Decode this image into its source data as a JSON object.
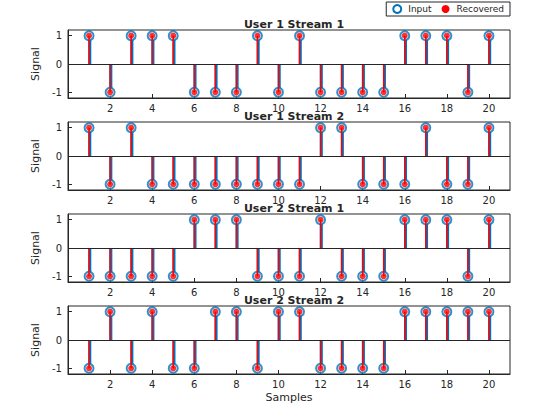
{
  "chart_data": [
    {
      "type": "stem",
      "title": "User 1 Stream 1",
      "ylabel": "Signal",
      "x": [
        1,
        2,
        3,
        4,
        5,
        6,
        7,
        8,
        9,
        10,
        11,
        12,
        13,
        14,
        15,
        16,
        17,
        18,
        19,
        20
      ],
      "series": [
        {
          "name": "Input",
          "color": "#0072bd",
          "marker": "open circle",
          "line_style": "solid",
          "values": [
            1,
            -1,
            1,
            1,
            1,
            -1,
            -1,
            -1,
            1,
            -1,
            1,
            -1,
            -1,
            -1,
            -1,
            1,
            1,
            1,
            -1,
            1
          ]
        },
        {
          "name": "Recovered",
          "color": "#ff0000",
          "marker": "filled circle",
          "line_style": "solid",
          "values": [
            1,
            -1,
            1,
            1,
            1,
            -1,
            -1,
            -1,
            1,
            -1,
            1,
            -1,
            -1,
            -1,
            -1,
            1,
            1,
            1,
            -1,
            1
          ]
        }
      ],
      "xlim": [
        0,
        21
      ],
      "xticks": [
        2,
        4,
        6,
        8,
        10,
        12,
        14,
        16,
        18,
        20
      ],
      "ylim": [
        -1.2,
        1.2
      ],
      "yticks": [
        -1,
        0,
        1
      ],
      "grid": false,
      "legend": "upper right"
    },
    {
      "type": "stem",
      "title": "User 1 Stream 2",
      "ylabel": "Signal",
      "x": [
        1,
        2,
        3,
        4,
        5,
        6,
        7,
        8,
        9,
        10,
        11,
        12,
        13,
        14,
        15,
        16,
        17,
        18,
        19,
        20
      ],
      "series": [
        {
          "name": "Input",
          "color": "#0072bd",
          "marker": "open circle",
          "line_style": "solid",
          "values": [
            1,
            -1,
            1,
            -1,
            -1,
            -1,
            -1,
            -1,
            -1,
            -1,
            -1,
            1,
            1,
            -1,
            -1,
            -1,
            1,
            -1,
            -1,
            1
          ]
        },
        {
          "name": "Recovered",
          "color": "#ff0000",
          "marker": "filled circle",
          "line_style": "solid",
          "values": [
            1,
            -1,
            1,
            -1,
            -1,
            -1,
            -1,
            -1,
            -1,
            -1,
            -1,
            1,
            1,
            -1,
            -1,
            -1,
            1,
            -1,
            -1,
            1
          ]
        }
      ],
      "xlim": [
        0,
        21
      ],
      "xticks": [
        2,
        4,
        6,
        8,
        10,
        12,
        14,
        16,
        18,
        20
      ],
      "ylim": [
        -1.2,
        1.2
      ],
      "yticks": [
        -1,
        0,
        1
      ],
      "grid": false
    },
    {
      "type": "stem",
      "title": "User 2 Stream 1",
      "ylabel": "Signal",
      "x": [
        1,
        2,
        3,
        4,
        5,
        6,
        7,
        8,
        9,
        10,
        11,
        12,
        13,
        14,
        15,
        16,
        17,
        18,
        19,
        20
      ],
      "series": [
        {
          "name": "Input",
          "color": "#0072bd",
          "marker": "open circle",
          "line_style": "solid",
          "values": [
            -1,
            -1,
            -1,
            -1,
            -1,
            1,
            1,
            1,
            -1,
            -1,
            -1,
            1,
            -1,
            -1,
            -1,
            1,
            1,
            1,
            -1,
            1
          ]
        },
        {
          "name": "Recovered",
          "color": "#ff0000",
          "marker": "filled circle",
          "line_style": "solid",
          "values": [
            -1,
            -1,
            -1,
            -1,
            -1,
            1,
            1,
            1,
            -1,
            -1,
            -1,
            1,
            -1,
            -1,
            -1,
            1,
            1,
            1,
            -1,
            1
          ]
        }
      ],
      "xlim": [
        0,
        21
      ],
      "xticks": [
        2,
        4,
        6,
        8,
        10,
        12,
        14,
        16,
        18,
        20
      ],
      "ylim": [
        -1.2,
        1.2
      ],
      "yticks": [
        -1,
        0,
        1
      ],
      "grid": false
    },
    {
      "type": "stem",
      "title": "User 2 Stream 2",
      "ylabel": "Signal",
      "xlabel": "Samples",
      "x": [
        1,
        2,
        3,
        4,
        5,
        6,
        7,
        8,
        9,
        10,
        11,
        12,
        13,
        14,
        15,
        16,
        17,
        18,
        19,
        20
      ],
      "series": [
        {
          "name": "Input",
          "color": "#0072bd",
          "marker": "open circle",
          "line_style": "solid",
          "values": [
            -1,
            1,
            -1,
            1,
            -1,
            -1,
            1,
            1,
            -1,
            1,
            1,
            -1,
            -1,
            -1,
            -1,
            1,
            1,
            1,
            1,
            1
          ]
        },
        {
          "name": "Recovered",
          "color": "#ff0000",
          "marker": "filled circle",
          "line_style": "solid",
          "values": [
            -1,
            1,
            -1,
            1,
            -1,
            -1,
            1,
            1,
            -1,
            1,
            1,
            -1,
            -1,
            -1,
            -1,
            1,
            1,
            1,
            1,
            1
          ]
        }
      ],
      "xlim": [
        0,
        21
      ],
      "xticks": [
        2,
        4,
        6,
        8,
        10,
        12,
        14,
        16,
        18,
        20
      ],
      "ylim": [
        -1.2,
        1.2
      ],
      "yticks": [
        -1,
        0,
        1
      ],
      "grid": false
    }
  ]
}
